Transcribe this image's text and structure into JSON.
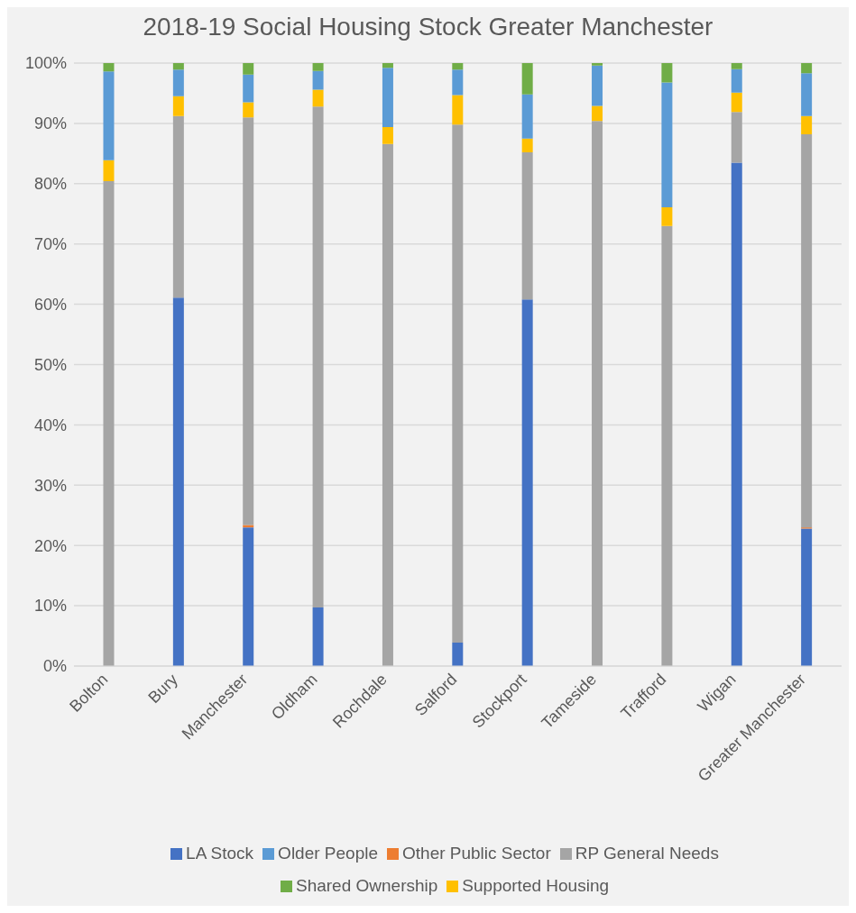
{
  "chart_data": {
    "type": "bar",
    "title": "2018-19 Social Housing Stock Greater Manchester",
    "stacked": true,
    "categories": [
      "Bolton",
      "Bury",
      "Manchester",
      "Oldham",
      "Rochdale",
      "Salford",
      "Stockport",
      "Tameside",
      "Trafford",
      "Wigan",
      "Greater Manchester"
    ],
    "series": [
      {
        "name": "LA Stock",
        "color": "#4472c4",
        "values": [
          0,
          61.1,
          23.0,
          9.7,
          0,
          3.9,
          60.8,
          0,
          0,
          83.5,
          22.8
        ]
      },
      {
        "name": "Other  Public Sector",
        "color": "#ed7d31",
        "values": [
          0,
          0,
          0.4,
          0,
          0,
          0,
          0,
          0,
          0,
          0,
          0.2
        ]
      },
      {
        "name": "RP General Needs",
        "color": "#a5a5a5",
        "values": [
          80.4,
          30.1,
          67.6,
          83.1,
          86.6,
          85.9,
          24.4,
          90.4,
          73.0,
          8.4,
          65.2
        ]
      },
      {
        "name": "Supported Housing",
        "color": "#ffc000",
        "values": [
          3.5,
          3.3,
          2.5,
          2.8,
          2.8,
          4.9,
          2.3,
          2.5,
          3.1,
          3.2,
          3.0
        ]
      },
      {
        "name": "Older People",
        "color": "#5b9bd5",
        "values": [
          14.7,
          4.4,
          4.6,
          3.1,
          9.8,
          4.2,
          7.3,
          6.7,
          20.7,
          3.9,
          7.1
        ]
      },
      {
        "name": "Shared Ownership",
        "color": "#70ad47",
        "values": [
          1.4,
          1.1,
          1.9,
          1.3,
          0.8,
          1.1,
          5.2,
          0.4,
          3.2,
          1.0,
          1.7
        ]
      }
    ],
    "ylim": [
      0,
      100
    ],
    "yticks": [
      {
        "value": 0,
        "label": "0%"
      },
      {
        "value": 10,
        "label": "10%"
      },
      {
        "value": 20,
        "label": "20%"
      },
      {
        "value": 30,
        "label": "30%"
      },
      {
        "value": 40,
        "label": "40%"
      },
      {
        "value": 50,
        "label": "50%"
      },
      {
        "value": 60,
        "label": "60%"
      },
      {
        "value": 70,
        "label": "70%"
      },
      {
        "value": 80,
        "label": "80%"
      },
      {
        "value": 90,
        "label": "90%"
      },
      {
        "value": 100,
        "label": "100%"
      }
    ],
    "grid": "y",
    "legend": "bottom"
  }
}
